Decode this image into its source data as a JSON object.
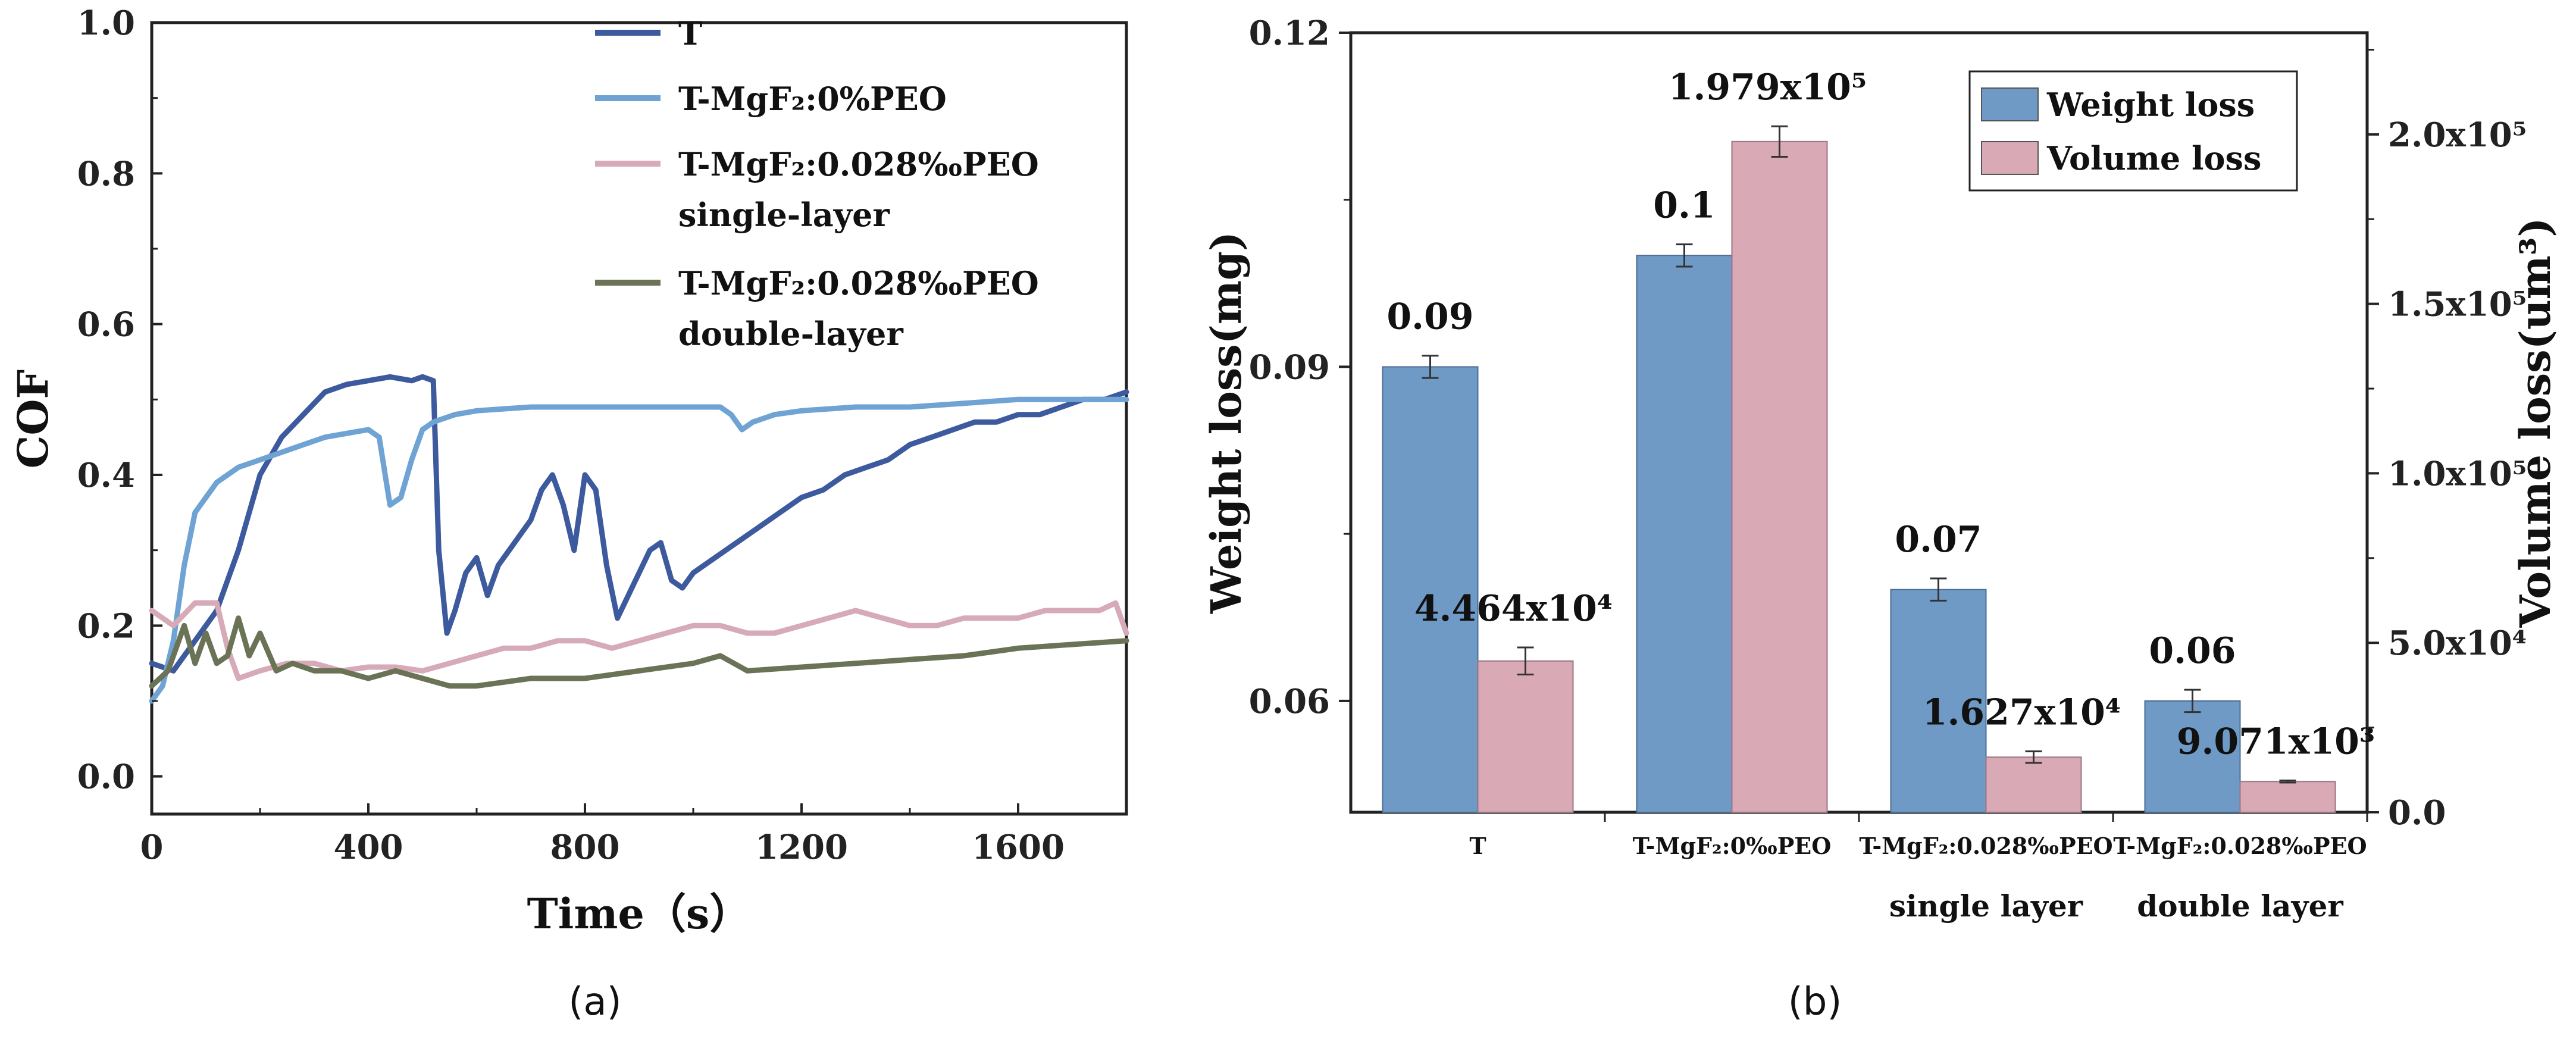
{
  "colors": {
    "T": "#3d5a9e",
    "T-MgF2:0%PEO": "#6ea3d4",
    "single": "#d6aab6",
    "double": "#6b7357",
    "weight_bar": "#6f9ac6",
    "volume_bar": "#d9aab6"
  },
  "chart_data": [
    {
      "type": "line",
      "panel_label": "(a)",
      "xlabel": "Time（s）",
      "ylabel": "COF",
      "xlim": [
        0,
        1800
      ],
      "ylim": [
        -0.05,
        1.0
      ],
      "x_ticks": [
        "0",
        "400",
        "800",
        "1200",
        "1600"
      ],
      "y_ticks": [
        "0.0",
        "0.2",
        "0.4",
        "0.6",
        "0.8",
        "1.0"
      ],
      "legend": [
        {
          "main": "T",
          "sub": ""
        },
        {
          "main": "T-MgF₂:0%PEO",
          "sub": ""
        },
        {
          "main": "T-MgF₂:0.028‰PEO",
          "sub": "single-layer"
        },
        {
          "main": "T-MgF₂:0.028‰PEO",
          "sub": "double-layer"
        }
      ],
      "series": [
        {
          "name": "T",
          "color_key": "T",
          "x": [
            0,
            40,
            80,
            120,
            160,
            200,
            240,
            280,
            320,
            360,
            400,
            440,
            480,
            500,
            520,
            530,
            545,
            560,
            580,
            600,
            620,
            640,
            660,
            680,
            700,
            720,
            740,
            760,
            780,
            800,
            820,
            840,
            860,
            880,
            900,
            920,
            940,
            960,
            980,
            1000,
            1040,
            1080,
            1120,
            1160,
            1200,
            1240,
            1280,
            1320,
            1360,
            1400,
            1440,
            1480,
            1520,
            1560,
            1600,
            1640,
            1680,
            1720,
            1760,
            1800
          ],
          "y": [
            0.15,
            0.14,
            0.18,
            0.22,
            0.3,
            0.4,
            0.45,
            0.48,
            0.51,
            0.52,
            0.525,
            0.53,
            0.525,
            0.53,
            0.525,
            0.3,
            0.19,
            0.22,
            0.27,
            0.29,
            0.24,
            0.28,
            0.3,
            0.32,
            0.34,
            0.38,
            0.4,
            0.36,
            0.3,
            0.4,
            0.38,
            0.28,
            0.21,
            0.24,
            0.27,
            0.3,
            0.31,
            0.26,
            0.25,
            0.27,
            0.29,
            0.31,
            0.33,
            0.35,
            0.37,
            0.38,
            0.4,
            0.41,
            0.42,
            0.44,
            0.45,
            0.46,
            0.47,
            0.47,
            0.48,
            0.48,
            0.49,
            0.5,
            0.5,
            0.51
          ]
        },
        {
          "name": "T-MgF2:0%PEO",
          "color_key": "T-MgF2:0%PEO",
          "x": [
            0,
            20,
            40,
            60,
            80,
            120,
            160,
            200,
            240,
            280,
            320,
            360,
            400,
            420,
            440,
            460,
            480,
            500,
            520,
            560,
            600,
            700,
            800,
            900,
            1000,
            1050,
            1070,
            1090,
            1110,
            1150,
            1200,
            1300,
            1400,
            1500,
            1600,
            1700,
            1800
          ],
          "y": [
            0.1,
            0.12,
            0.18,
            0.28,
            0.35,
            0.39,
            0.41,
            0.42,
            0.43,
            0.44,
            0.45,
            0.455,
            0.46,
            0.45,
            0.36,
            0.37,
            0.42,
            0.46,
            0.47,
            0.48,
            0.485,
            0.49,
            0.49,
            0.49,
            0.49,
            0.49,
            0.48,
            0.46,
            0.47,
            0.48,
            0.485,
            0.49,
            0.49,
            0.495,
            0.5,
            0.5,
            0.5
          ]
        },
        {
          "name": "T-MgF2:0.028‰PEO single-layer",
          "color_key": "single",
          "x": [
            0,
            40,
            80,
            120,
            140,
            160,
            200,
            250,
            300,
            350,
            400,
            450,
            500,
            550,
            600,
            650,
            700,
            750,
            800,
            850,
            900,
            950,
            1000,
            1050,
            1100,
            1150,
            1200,
            1250,
            1300,
            1350,
            1400,
            1450,
            1500,
            1550,
            1600,
            1650,
            1700,
            1750,
            1780,
            1800
          ],
          "y": [
            0.22,
            0.2,
            0.23,
            0.23,
            0.17,
            0.13,
            0.14,
            0.15,
            0.15,
            0.14,
            0.145,
            0.145,
            0.14,
            0.15,
            0.16,
            0.17,
            0.17,
            0.18,
            0.18,
            0.17,
            0.18,
            0.19,
            0.2,
            0.2,
            0.19,
            0.19,
            0.2,
            0.21,
            0.22,
            0.21,
            0.2,
            0.2,
            0.21,
            0.21,
            0.21,
            0.22,
            0.22,
            0.22,
            0.23,
            0.19
          ]
        },
        {
          "name": "T-MgF2:0.028‰PEO double-layer",
          "color_key": "double",
          "x": [
            0,
            30,
            60,
            80,
            100,
            120,
            140,
            160,
            180,
            200,
            230,
            260,
            300,
            350,
            400,
            450,
            500,
            550,
            600,
            700,
            800,
            900,
            1000,
            1050,
            1100,
            1200,
            1300,
            1400,
            1500,
            1600,
            1700,
            1800
          ],
          "y": [
            0.12,
            0.14,
            0.2,
            0.15,
            0.19,
            0.15,
            0.16,
            0.21,
            0.16,
            0.19,
            0.14,
            0.15,
            0.14,
            0.14,
            0.13,
            0.14,
            0.13,
            0.12,
            0.12,
            0.13,
            0.13,
            0.14,
            0.15,
            0.16,
            0.14,
            0.145,
            0.15,
            0.155,
            0.16,
            0.17,
            0.175,
            0.18
          ]
        }
      ]
    },
    {
      "type": "bar",
      "panel_label": "(b)",
      "ylabel": "Weight loss(mg)",
      "y2label": "Volume loss(um³)",
      "ylim": [
        0.05,
        0.12
      ],
      "y_ticks": [
        "0.06",
        "0.09",
        "0.12"
      ],
      "y2lim": [
        0,
        230000
      ],
      "y2_ticks": [
        "0.0",
        "5.0x10⁴",
        "1.0x10⁵",
        "1.5x10⁵",
        "2.0x10⁵"
      ],
      "categories": [
        {
          "line1": "T",
          "line2": ""
        },
        {
          "line1": "T-MgF₂:0‰PEO",
          "line2": ""
        },
        {
          "line1": "T-MgF₂:0.028‰PEO",
          "line2": "single layer"
        },
        {
          "line1": "T-MgF₂:0.028‰PEO",
          "line2": "double layer"
        }
      ],
      "series": [
        {
          "name": "Weight loss",
          "values": [
            0.09,
            0.1,
            0.07,
            0.06
          ],
          "errors": [
            0.001,
            0.001,
            0.001,
            0.001
          ],
          "labels": [
            "0.09",
            "0.1",
            "0.07",
            "0.06"
          ]
        },
        {
          "name": "Volume loss",
          "values": [
            44640,
            197900,
            16270,
            9071
          ],
          "errors": [
            4000,
            4500,
            1700,
            300
          ],
          "labels": [
            "4.464x10⁴",
            "1.979x10⁵",
            "1.627x10⁴",
            "9.071x10³"
          ]
        }
      ],
      "legend": [
        "Weight loss",
        "Volume loss"
      ]
    }
  ]
}
